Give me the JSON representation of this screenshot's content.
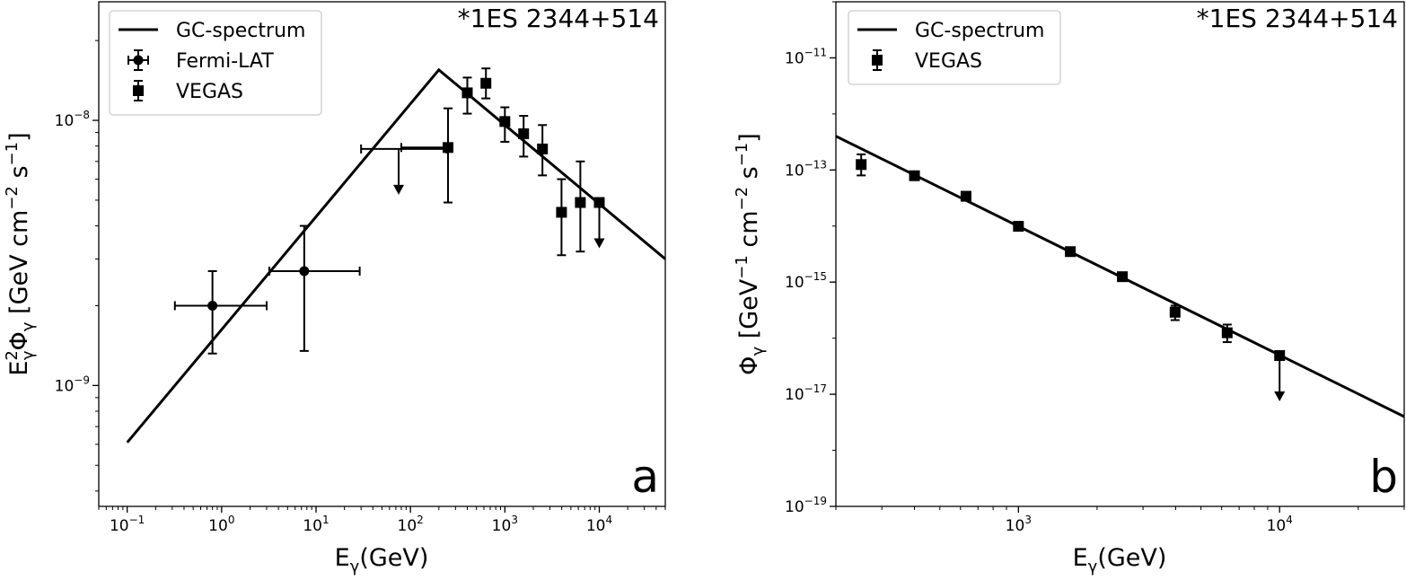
{
  "chart_data": [
    {
      "panel_label": "a",
      "type": "scatter",
      "annotation": "*1ES 2344+514",
      "xlabel": {
        "main": "E",
        "sub": "γ",
        "rest": "(GeV)"
      },
      "ylabel": {
        "p1": "E",
        "sup1": "2",
        "sub1": "γ",
        "p2": "Φ",
        "sub2": "γ",
        "p3": " [GeV cm",
        "sup3": "−2",
        "p4": " s",
        "sup4": "−1",
        "p5": "]"
      },
      "xscale": "log",
      "yscale": "log",
      "xlim": [
        0.05,
        50000
      ],
      "ylim": [
        3.5e-10,
        2.8e-08
      ],
      "xticks": [
        {
          "value": 0.1,
          "base": "10",
          "exp": "−1"
        },
        {
          "value": 1,
          "base": "10",
          "exp": "0"
        },
        {
          "value": 10,
          "base": "10",
          "exp": "1"
        },
        {
          "value": 100,
          "base": "10",
          "exp": "2"
        },
        {
          "value": 1000,
          "base": "10",
          "exp": "3"
        },
        {
          "value": 10000,
          "base": "10",
          "exp": "4"
        }
      ],
      "yticks": [
        {
          "value": 1e-09,
          "base": "10",
          "exp": "−9"
        },
        {
          "value": 1e-08,
          "base": "10",
          "exp": "−8"
        }
      ],
      "legend_position": "top-left",
      "legend": [
        {
          "label": "GC-spectrum",
          "kind": "line"
        },
        {
          "label": "Fermi-LAT",
          "kind": "circle"
        },
        {
          "label": "VEGAS",
          "kind": "square"
        }
      ],
      "series": [
        {
          "name": "GC-spectrum",
          "kind": "line",
          "points": [
            [
              0.1,
              6.1e-10
            ],
            [
              200,
              1.55e-08
            ],
            [
              50000,
              3e-09
            ]
          ]
        },
        {
          "name": "Fermi-LAT",
          "kind": "circle",
          "points": [
            {
              "x": 0.8,
              "y": 2e-09,
              "xerr": [
                0.32,
                3.0
              ],
              "yerr": [
                1.32e-09,
                2.7e-09
              ]
            },
            {
              "x": 7.5,
              "y": 2.7e-09,
              "xerr": [
                3.2,
                29
              ],
              "yerr": [
                1.35e-09,
                4e-09
              ]
            },
            {
              "x": 75,
              "y": 7.8e-09,
              "xerr": [
                30,
                240
              ],
              "upper_limit": true
            }
          ]
        },
        {
          "name": "VEGAS",
          "kind": "square",
          "points": [
            {
              "x": 250,
              "y": 7.9e-09,
              "yerr": [
                4.9e-09,
                1.11e-08
              ],
              "xerr": [
                80,
                260
              ]
            },
            {
              "x": 400,
              "y": 1.27e-08,
              "yerr": [
                1.06e-08,
                1.45e-08
              ]
            },
            {
              "x": 630,
              "y": 1.38e-08,
              "yerr": [
                1.21e-08,
                1.57e-08
              ]
            },
            {
              "x": 1000,
              "y": 9.9e-09,
              "yerr": [
                8.3e-09,
                1.12e-08
              ]
            },
            {
              "x": 1580,
              "y": 8.9e-09,
              "yerr": [
                7.3e-09,
                1.04e-08
              ]
            },
            {
              "x": 2500,
              "y": 7.8e-09,
              "yerr": [
                6.2e-09,
                9.6e-09
              ]
            },
            {
              "x": 3980,
              "y": 4.5e-09,
              "yerr": [
                3.1e-09,
                6e-09
              ]
            },
            {
              "x": 6300,
              "y": 4.9e-09,
              "yerr": [
                3.2e-09,
                7e-09
              ]
            },
            {
              "x": 10000,
              "y": 4.9e-09,
              "upper_limit": true
            }
          ]
        }
      ]
    },
    {
      "panel_label": "b",
      "type": "scatter",
      "annotation": "*1ES 2344+514",
      "xlabel": {
        "main": "E",
        "sub": "γ",
        "rest": "(GeV)"
      },
      "ylabel": {
        "p1": "Φ",
        "sub1": "γ",
        "p2": " [GeV",
        "sup2": "−1",
        "p3": " cm",
        "sup3": "−2",
        "p4": " s",
        "sup4": "−1",
        "p5": "]"
      },
      "xscale": "log",
      "yscale": "log",
      "xlim": [
        200,
        30000
      ],
      "ylim": [
        1e-19,
        1e-10
      ],
      "xticks": [
        {
          "value": 1000,
          "base": "10",
          "exp": "3"
        },
        {
          "value": 10000,
          "base": "10",
          "exp": "4"
        }
      ],
      "yticks": [
        {
          "value": 1e-19,
          "base": "10",
          "exp": "−19"
        },
        {
          "value": 1e-17,
          "base": "10",
          "exp": "−17"
        },
        {
          "value": 1e-15,
          "base": "10",
          "exp": "−15"
        },
        {
          "value": 1e-13,
          "base": "10",
          "exp": "−13"
        },
        {
          "value": 1e-11,
          "base": "10",
          "exp": "−11"
        }
      ],
      "legend_position": "top-left",
      "legend": [
        {
          "label": "GC-spectrum",
          "kind": "line"
        },
        {
          "label": "VEGAS",
          "kind": "square"
        }
      ],
      "series": [
        {
          "name": "GC-spectrum",
          "kind": "line",
          "points": [
            [
              200,
              4e-13
            ],
            [
              30000,
              4e-18
            ]
          ]
        },
        {
          "name": "VEGAS",
          "kind": "square",
          "points": [
            {
              "x": 250,
              "y": 1.25e-13,
              "yerr": [
                8e-14,
                1.9e-13
              ]
            },
            {
              "x": 400,
              "y": 7.9e-14,
              "yerr": [
                7e-14,
                9e-14
              ]
            },
            {
              "x": 630,
              "y": 3.4e-14,
              "yerr": [
                2.9e-14,
                3.9e-14
              ]
            },
            {
              "x": 1000,
              "y": 9.9e-15,
              "yerr": [
                8.8e-15,
                1.12e-14
              ]
            },
            {
              "x": 1580,
              "y": 3.5e-15,
              "yerr": [
                3e-15,
                4e-15
              ]
            },
            {
              "x": 2500,
              "y": 1.25e-15,
              "yerr": [
                1.1e-15,
                1.45e-15
              ]
            },
            {
              "x": 3980,
              "y": 2.9e-16,
              "yerr": [
                2.1e-16,
                3.8e-16
              ]
            },
            {
              "x": 6300,
              "y": 1.25e-16,
              "yerr": [
                8.5e-17,
                1.75e-16
              ]
            },
            {
              "x": 10000,
              "y": 4.9e-17,
              "upper_limit": true
            }
          ]
        }
      ]
    }
  ]
}
